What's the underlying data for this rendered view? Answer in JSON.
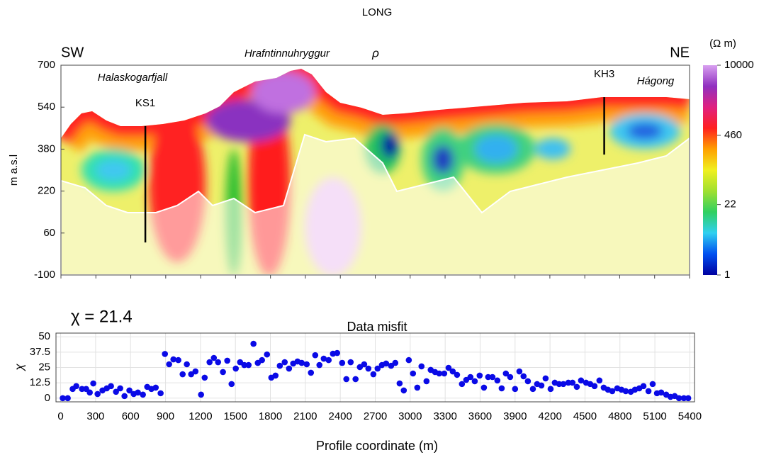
{
  "chart_data": [
    {
      "type": "heatmap",
      "title": "LONG",
      "ylabel": "m a.s.l",
      "xlim": [
        0,
        5400
      ],
      "xticks": [
        0,
        300,
        600,
        900,
        1200,
        1500,
        1800,
        2100,
        2400,
        2700,
        3000,
        3300,
        3600,
        3900,
        4200,
        4500,
        4800,
        5100,
        5400
      ],
      "ylim": [
        -100,
        700
      ],
      "yticks": [
        700,
        540,
        380,
        220,
        60,
        -100
      ],
      "annotations": [
        "SW",
        "NE",
        "Halaskogarfjall",
        "Hrafntinnuhryggur",
        "ρ",
        "Hágong"
      ],
      "wells": [
        {
          "name": "KS1",
          "x": 725,
          "top": 468,
          "bottom": 24
        },
        {
          "name": "KH3",
          "x": 4667,
          "top": 578,
          "bottom": 359
        }
      ],
      "colorbar": {
        "label": "(Ω m)",
        "scale": "log",
        "lim": [
          1,
          10000
        ],
        "ticks": [
          10000,
          460,
          22,
          1
        ],
        "colors": [
          "#0000a0",
          "#0050f0",
          "#30d0f0",
          "#30d060",
          "#a0e030",
          "#f0f020",
          "#ffa000",
          "#ff2020",
          "#e02080",
          "#9030c0",
          "#d8a0f0"
        ]
      }
    },
    {
      "type": "scatter",
      "title": "Data misfit",
      "annotation": "χ = 21.4",
      "xlabel": "Profile coordinate (m)",
      "ylabel": "χ",
      "color": "#0a0ae6",
      "grid": true,
      "xlim": [
        -40,
        5440
      ],
      "xticks": [
        0,
        300,
        600,
        900,
        1200,
        1500,
        1800,
        2100,
        2400,
        2700,
        3000,
        3300,
        3600,
        3900,
        4200,
        4500,
        4800,
        5100,
        5400
      ],
      "ylim": [
        -3,
        53
      ],
      "yticks": [
        0,
        12.5,
        25,
        37.5,
        50
      ],
      "x": [
        18,
        61,
        103,
        134,
        183,
        219,
        250,
        280,
        317,
        359,
        396,
        432,
        475,
        511,
        548,
        590,
        627,
        663,
        706,
        743,
        779,
        816,
        858,
        895,
        931,
        968,
        1010,
        1047,
        1083,
        1120,
        1157,
        1205,
        1236,
        1278,
        1315,
        1351,
        1393,
        1430,
        1467,
        1503,
        1540,
        1576,
        1613,
        1655,
        1692,
        1728,
        1771,
        1808,
        1844,
        1881,
        1923,
        1960,
        1996,
        2033,
        2069,
        2112,
        2148,
        2185,
        2221,
        2258,
        2300,
        2337,
        2373,
        2416,
        2452,
        2489,
        2531,
        2568,
        2605,
        2641,
        2684,
        2720,
        2757,
        2793,
        2836,
        2872,
        2909,
        2945,
        2988,
        3024,
        3061,
        3097,
        3140,
        3176,
        3213,
        3249,
        3292,
        3329,
        3365,
        3402,
        3444,
        3481,
        3517,
        3554,
        3596,
        3633,
        3669,
        3706,
        3748,
        3785,
        3821,
        3858,
        3900,
        3937,
        3973,
        4010,
        4053,
        4089,
        4126,
        4162,
        4205,
        4241,
        4278,
        4314,
        4357,
        4393,
        4430,
        4466,
        4509,
        4545,
        4582,
        4624,
        4661,
        4697,
        4734,
        4777,
        4813,
        4850,
        4893,
        4929,
        4966,
        5002,
        5045,
        5081,
        5118,
        5154,
        5197,
        5234,
        5270,
        5307,
        5349,
        5386
      ],
      "values": [
        0,
        0,
        7.5,
        9.8,
        7.5,
        7.5,
        4.6,
        12,
        3.4,
        6.3,
        8,
        9.8,
        5.2,
        8,
        1.7,
        6.3,
        3.4,
        4.6,
        2.9,
        9.2,
        7.5,
        8.6,
        4,
        36,
        27.6,
        31.6,
        31,
        19.5,
        27.6,
        19.5,
        21.8,
        2.9,
        16.7,
        29.3,
        32.8,
        29.3,
        21.3,
        30.5,
        11.5,
        24.1,
        29.3,
        27,
        27,
        44.3,
        28.7,
        31,
        35.6,
        16.7,
        18.4,
        26.4,
        29.3,
        24.1,
        28.2,
        29.9,
        28.7,
        27.6,
        20.7,
        35,
        27,
        32.2,
        31,
        36.2,
        36.8,
        28.7,
        15.5,
        29.3,
        15.5,
        25.3,
        27.6,
        24.1,
        19.5,
        24.1,
        27,
        28.2,
        26.4,
        28.7,
        12,
        6.3,
        31,
        20.1,
        8.6,
        25.9,
        13.8,
        23,
        21.3,
        20.1,
        20.1,
        24.7,
        21.8,
        19,
        11.5,
        14.9,
        17.2,
        13.8,
        18.4,
        8.6,
        17.2,
        17.2,
        14.4,
        8,
        20.1,
        17.2,
        7.5,
        21.8,
        17.8,
        13.8,
        7.5,
        11.5,
        10.3,
        16.1,
        7.5,
        12.6,
        11.5,
        11.5,
        12.6,
        12.6,
        9.2,
        14.4,
        12.6,
        11.5,
        9.8,
        14.4,
        8.6,
        6.9,
        5.7,
        8,
        6.9,
        5.7,
        5.2,
        6.9,
        8,
        9.8,
        5.7,
        11.5,
        4,
        4.6,
        2.9,
        1.1,
        1.7,
        0,
        0,
        0
      ]
    }
  ]
}
